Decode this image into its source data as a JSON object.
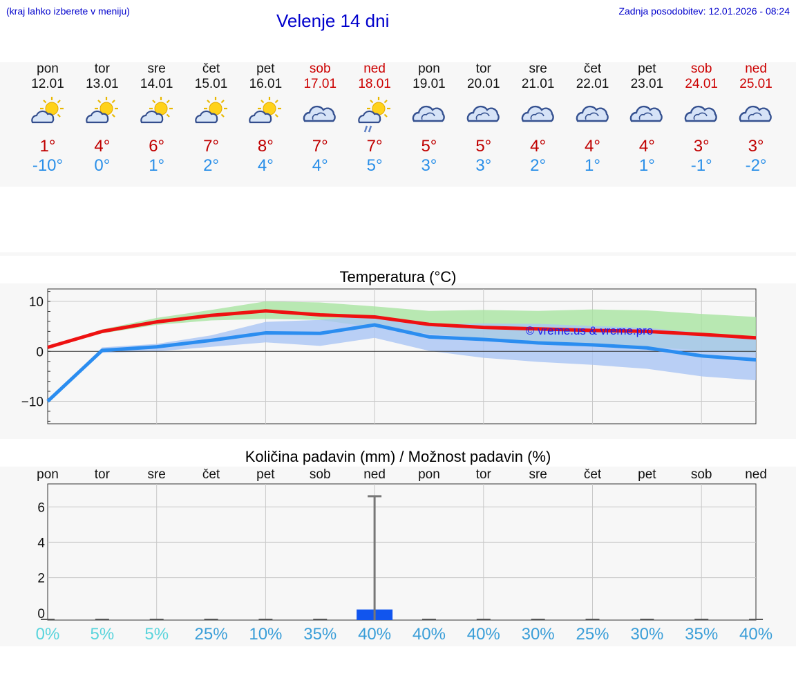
{
  "header": {
    "hint": "(kraj lahko izberete v meniju)",
    "title": "Velenje 14 dni",
    "updated": "Zadnja posodobitev: 12.01.2026 - 08:24"
  },
  "days": [
    {
      "name": "pon",
      "date": "12.01",
      "weekend": false,
      "icon": "sun-cloud-icon",
      "max": "1°",
      "min": "-10°"
    },
    {
      "name": "tor",
      "date": "13.01",
      "weekend": false,
      "icon": "sun-cloud-icon",
      "max": "4°",
      "min": "0°"
    },
    {
      "name": "sre",
      "date": "14.01",
      "weekend": false,
      "icon": "sun-cloud-icon",
      "max": "6°",
      "min": "1°"
    },
    {
      "name": "čet",
      "date": "15.01",
      "weekend": false,
      "icon": "sun-cloud-icon",
      "max": "7°",
      "min": "2°"
    },
    {
      "name": "pet",
      "date": "16.01",
      "weekend": false,
      "icon": "sun-cloud-icon",
      "max": "8°",
      "min": "4°"
    },
    {
      "name": "sob",
      "date": "17.01",
      "weekend": true,
      "icon": "cloud-icon",
      "max": "7°",
      "min": "4°"
    },
    {
      "name": "ned",
      "date": "18.01",
      "weekend": true,
      "icon": "sun-cloud-rain-icon",
      "max": "7°",
      "min": "5°"
    },
    {
      "name": "pon",
      "date": "19.01",
      "weekend": false,
      "icon": "cloud-icon",
      "max": "5°",
      "min": "3°"
    },
    {
      "name": "tor",
      "date": "20.01",
      "weekend": false,
      "icon": "cloud-icon",
      "max": "5°",
      "min": "3°"
    },
    {
      "name": "sre",
      "date": "21.01",
      "weekend": false,
      "icon": "cloud-icon",
      "max": "4°",
      "min": "2°"
    },
    {
      "name": "čet",
      "date": "22.01",
      "weekend": false,
      "icon": "cloud-icon",
      "max": "4°",
      "min": "1°"
    },
    {
      "name": "pet",
      "date": "23.01",
      "weekend": false,
      "icon": "cloud-icon",
      "max": "4°",
      "min": "1°"
    },
    {
      "name": "sob",
      "date": "24.01",
      "weekend": true,
      "icon": "cloud-icon",
      "max": "3°",
      "min": "-1°"
    },
    {
      "name": "ned",
      "date": "25.01",
      "weekend": true,
      "icon": "cloud-icon",
      "max": "3°",
      "min": "-2°"
    }
  ],
  "colors": {
    "max_line": "#ee1111",
    "min_line": "#2b8df0",
    "max_band": "#a8e4a0",
    "min_band": "#a9c4f4",
    "weekend": "#cc0000",
    "precip_bar": "#1155ee"
  },
  "chart_data": [
    {
      "type": "line",
      "title": "Temperatura (°C)",
      "ylim": [
        -14.5,
        12.5
      ],
      "yticks": [
        10,
        0,
        -10
      ],
      "ytick_labels": [
        "10",
        "0",
        "−10"
      ],
      "watermark": "© vreme.us & vreme.pro",
      "series": [
        {
          "name": "max",
          "values": [
            0.8,
            4.0,
            5.9,
            7.2,
            8.1,
            7.3,
            6.9,
            5.4,
            4.8,
            4.5,
            4.2,
            4.0,
            3.4,
            2.7
          ],
          "band_low": [
            0.8,
            3.6,
            5.3,
            6.2,
            6.5,
            6.3,
            4.8,
            3.5,
            2.6,
            1.9,
            1.4,
            0.9,
            0.2,
            -0.3
          ],
          "band_high": [
            0.8,
            4.4,
            6.7,
            8.3,
            10.0,
            9.8,
            9.0,
            8.1,
            8.3,
            8.1,
            8.4,
            8.2,
            7.5,
            6.9
          ]
        },
        {
          "name": "min",
          "values": [
            -10.0,
            0.2,
            0.9,
            2.2,
            3.7,
            3.6,
            5.3,
            2.9,
            2.4,
            1.7,
            1.3,
            0.7,
            -0.9,
            -1.7
          ],
          "band_low": [
            -10.0,
            -0.3,
            0.0,
            0.9,
            1.8,
            1.1,
            2.7,
            0.1,
            -1.3,
            -2.1,
            -2.7,
            -3.5,
            -5.0,
            -5.8
          ],
          "band_high": [
            -10.0,
            0.8,
            1.5,
            3.2,
            5.9,
            6.3,
            7.3,
            5.4,
            5.6,
            5.5,
            5.1,
            4.7,
            3.7,
            3.0
          ]
        }
      ]
    },
    {
      "type": "bar",
      "title": "Količina padavin (mm) / Možnost padavin (%)",
      "ylim": [
        -0.4,
        7.3
      ],
      "yticks": [
        6,
        4,
        2,
        0
      ],
      "day_names": [
        "pon",
        "tor",
        "sre",
        "čet",
        "pet",
        "sob",
        "ned",
        "pon",
        "tor",
        "sre",
        "čet",
        "pet",
        "sob",
        "ned"
      ],
      "values": [
        0,
        0,
        0,
        0,
        0,
        0,
        0.2,
        0,
        0,
        0,
        0,
        0,
        0,
        0
      ],
      "error_max": [
        null,
        null,
        null,
        null,
        null,
        null,
        6.6,
        null,
        null,
        null,
        null,
        null,
        null,
        null
      ],
      "probability": [
        "0%",
        "5%",
        "5%",
        "25%",
        "10%",
        "35%",
        "40%",
        "40%",
        "40%",
        "30%",
        "25%",
        "30%",
        "35%",
        "40%"
      ],
      "probability_colors": [
        "#5ad4dc",
        "#5ad4dc",
        "#5ad4dc",
        "#3a9ed8",
        "#3a9ed8",
        "#3a9ed8",
        "#3a9ed8",
        "#3a9ed8",
        "#3a9ed8",
        "#3a9ed8",
        "#3a9ed8",
        "#3a9ed8",
        "#3a9ed8",
        "#3a9ed8"
      ]
    }
  ]
}
